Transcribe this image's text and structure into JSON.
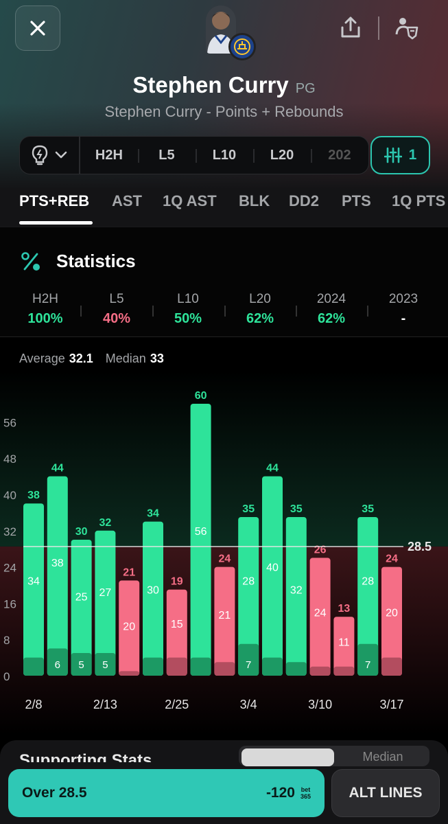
{
  "player": {
    "name": "Stephen Curry",
    "position": "PG",
    "subtitle": "Stephen Curry - Points + Rebounds"
  },
  "range": {
    "items": [
      "H2H",
      "L5",
      "L10",
      "L20",
      "202"
    ],
    "filter_count": "1"
  },
  "tabs": [
    "PTS+REB",
    "AST",
    "1Q AST",
    "BLK",
    "DD2",
    "PTS",
    "1Q PTS"
  ],
  "statistics": {
    "title": "Statistics",
    "columns": [
      {
        "label": "H2H",
        "value": "100%",
        "status": "green"
      },
      {
        "label": "L5",
        "value": "40%",
        "status": "red"
      },
      {
        "label": "L10",
        "value": "50%",
        "status": "green"
      },
      {
        "label": "L20",
        "value": "62%",
        "status": "green"
      },
      {
        "label": "2024",
        "value": "62%",
        "status": "green"
      },
      {
        "label": "2023",
        "value": "-",
        "status": "neutral"
      }
    ]
  },
  "summary": {
    "average_label": "Average",
    "average_value": "32.1",
    "median_label": "Median",
    "median_value": "33"
  },
  "chart_data": {
    "type": "bar",
    "line": 28.5,
    "line_label": "28.5",
    "ylim": [
      0,
      60
    ],
    "yticks": [
      0,
      8,
      16,
      24,
      32,
      40,
      48,
      56
    ],
    "xtick_labels": [
      "2/8",
      "2/13",
      "2/25",
      "3/4",
      "3/10",
      "3/17"
    ],
    "series": [
      {
        "name": "PTS",
        "values": [
          34,
          38,
          25,
          27,
          20,
          30,
          15,
          56,
          21,
          28,
          40,
          32,
          24,
          11,
          28,
          20
        ]
      },
      {
        "name": "REB",
        "values": [
          4,
          6,
          5,
          5,
          1,
          4,
          4,
          4,
          3,
          7,
          4,
          3,
          2,
          2,
          7,
          4
        ]
      }
    ],
    "totals": [
      38,
      44,
      30,
      32,
      21,
      34,
      19,
      60,
      24,
      35,
      44,
      35,
      26,
      13,
      35,
      24
    ],
    "bar_status": [
      "over",
      "over",
      "over",
      "over",
      "under",
      "over",
      "under",
      "over",
      "under",
      "over",
      "over",
      "over",
      "under",
      "under",
      "over",
      "under"
    ],
    "inner_labels": [
      "34",
      "38",
      "25",
      "27",
      "20",
      "30",
      "15",
      "56",
      "21",
      "28",
      "40",
      "32",
      "24",
      "11",
      "28",
      "20"
    ],
    "reb_labels": [
      "",
      "6",
      "5",
      "5",
      "",
      "",
      "",
      "",
      "",
      "7",
      "",
      "",
      "",
      "",
      "7",
      ""
    ]
  },
  "colors": {
    "green": "#2ee39a",
    "green_dark": "#1c9a64",
    "red": "#f56e86",
    "red_dark": "#b34d5f",
    "teal": "#2fc8b5"
  },
  "bottom": {
    "section_title": "Supporting Stats",
    "seg_b_label": "Median",
    "over_label": "Over 28.5",
    "over_odds": "-120",
    "book_line1": "bet",
    "book_line2": "365",
    "alt_lines_label": "ALT LINES"
  }
}
